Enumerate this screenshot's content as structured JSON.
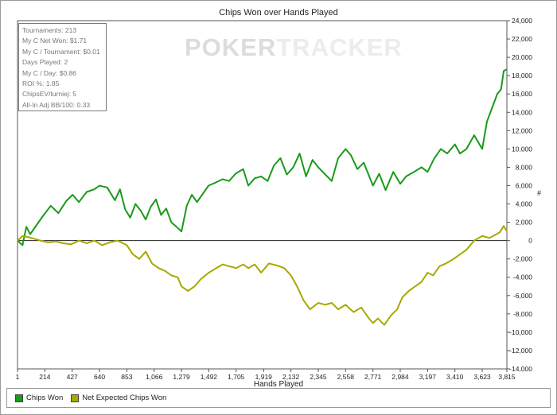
{
  "chart_data": {
    "type": "line",
    "title": "Chips Won over Hands Played",
    "xlabel": "Hands Played",
    "ylabel": "#",
    "xlim": [
      1,
      3815
    ],
    "ylim": [
      -14000,
      24000
    ],
    "x_ticks": [
      1,
      214,
      427,
      640,
      853,
      1066,
      1279,
      1492,
      1705,
      1919,
      2132,
      2345,
      2558,
      2771,
      2984,
      3197,
      3410,
      3623,
      3815
    ],
    "y_ticks": [
      -14000,
      -12000,
      -10000,
      -8000,
      -6000,
      -4000,
      -2000,
      0,
      2000,
      4000,
      6000,
      8000,
      10000,
      12000,
      14000,
      16000,
      18000,
      20000,
      22000,
      24000
    ],
    "y_tick_labels": [
      "-14,000",
      "-12,000",
      "-10,000",
      "-8,000",
      "-6,000",
      "-4,000",
      "-2,000",
      "0",
      "2,000",
      "4,000",
      "6,000",
      "8,000",
      "10,000",
      "12,000",
      "14,000",
      "16,000",
      "18,000",
      "20,000",
      "22,000",
      "24,000"
    ],
    "grid": false,
    "legend_position": "bottom",
    "series": [
      {
        "name": "Chips Won",
        "color": "#1a9a1a",
        "x": [
          1,
          40,
          70,
          100,
          150,
          200,
          260,
          320,
          380,
          430,
          480,
          540,
          600,
          640,
          700,
          760,
          800,
          840,
          880,
          920,
          960,
          1000,
          1040,
          1080,
          1120,
          1160,
          1200,
          1240,
          1279,
          1320,
          1360,
          1400,
          1440,
          1490,
          1540,
          1600,
          1650,
          1700,
          1760,
          1800,
          1850,
          1900,
          1950,
          2000,
          2050,
          2100,
          2150,
          2200,
          2250,
          2300,
          2345,
          2400,
          2450,
          2500,
          2558,
          2600,
          2650,
          2700,
          2771,
          2820,
          2870,
          2930,
          2984,
          3030,
          3080,
          3150,
          3197,
          3250,
          3300,
          3350,
          3410,
          3450,
          3500,
          3560,
          3623,
          3660,
          3700,
          3740,
          3770,
          3790,
          3815
        ],
        "y": [
          0,
          -500,
          1500,
          700,
          1700,
          2700,
          3800,
          3000,
          4300,
          5000,
          4200,
          5300,
          5600,
          6000,
          5800,
          4400,
          5600,
          3400,
          2500,
          4000,
          3300,
          2300,
          3700,
          4500,
          2800,
          3500,
          2000,
          1500,
          1000,
          3800,
          5000,
          4200,
          5000,
          6000,
          6300,
          6700,
          6500,
          7300,
          7800,
          6000,
          6800,
          7000,
          6500,
          8200,
          9000,
          7200,
          8000,
          9500,
          7000,
          8800,
          8000,
          7200,
          6500,
          9000,
          10000,
          9300,
          7800,
          8500,
          6000,
          7300,
          5500,
          7500,
          6200,
          7000,
          7400,
          8000,
          7500,
          9000,
          10000,
          9500,
          10500,
          9500,
          10000,
          11500,
          10000,
          13000,
          14500,
          16000,
          16500,
          18500,
          18700
        ]
      },
      {
        "name": "Net Expected Chips Won",
        "color": "#a8a800",
        "x": [
          1,
          40,
          80,
          130,
          180,
          240,
          300,
          360,
          420,
          480,
          540,
          600,
          660,
          720,
          780,
          853,
          900,
          950,
          1000,
          1050,
          1100,
          1150,
          1200,
          1250,
          1279,
          1330,
          1380,
          1430,
          1492,
          1550,
          1600,
          1650,
          1705,
          1760,
          1800,
          1850,
          1900,
          1960,
          2020,
          2080,
          2132,
          2180,
          2230,
          2280,
          2345,
          2400,
          2450,
          2500,
          2558,
          2620,
          2680,
          2740,
          2771,
          2810,
          2860,
          2910,
          2960,
          3000,
          3050,
          3100,
          3150,
          3197,
          3240,
          3290,
          3340,
          3400,
          3450,
          3500,
          3560,
          3623,
          3680,
          3720,
          3760,
          3790,
          3815
        ],
        "y": [
          0,
          500,
          400,
          200,
          0,
          -200,
          -100,
          -300,
          -400,
          0,
          -300,
          0,
          -500,
          -200,
          0,
          -500,
          -1500,
          -2000,
          -1200,
          -2500,
          -3000,
          -3300,
          -3800,
          -4000,
          -5000,
          -5500,
          -5000,
          -4200,
          -3500,
          -3000,
          -2600,
          -2800,
          -3000,
          -2600,
          -3000,
          -2600,
          -3500,
          -2500,
          -2700,
          -3000,
          -3800,
          -5000,
          -6500,
          -7500,
          -6800,
          -7000,
          -6800,
          -7500,
          -7000,
          -7800,
          -7300,
          -8500,
          -9000,
          -8500,
          -9200,
          -8200,
          -7500,
          -6200,
          -5500,
          -5000,
          -4500,
          -3500,
          -3800,
          -2800,
          -2500,
          -2000,
          -1500,
          -1000,
          0,
          500,
          300,
          600,
          900,
          1600,
          1000
        ]
      }
    ]
  },
  "stats": [
    "Tournaments: 213",
    "My C Net Won: $1.71",
    "My C / Tournament: $0.01",
    "Days Played: 2",
    "My C / Day: $0.86",
    "ROI %: 1.85",
    "ChipsEV/turniej: 5",
    "All-In Adj BB/100: 0.33"
  ],
  "watermark": {
    "part1": "POKER",
    "part2": "TRACKER"
  }
}
